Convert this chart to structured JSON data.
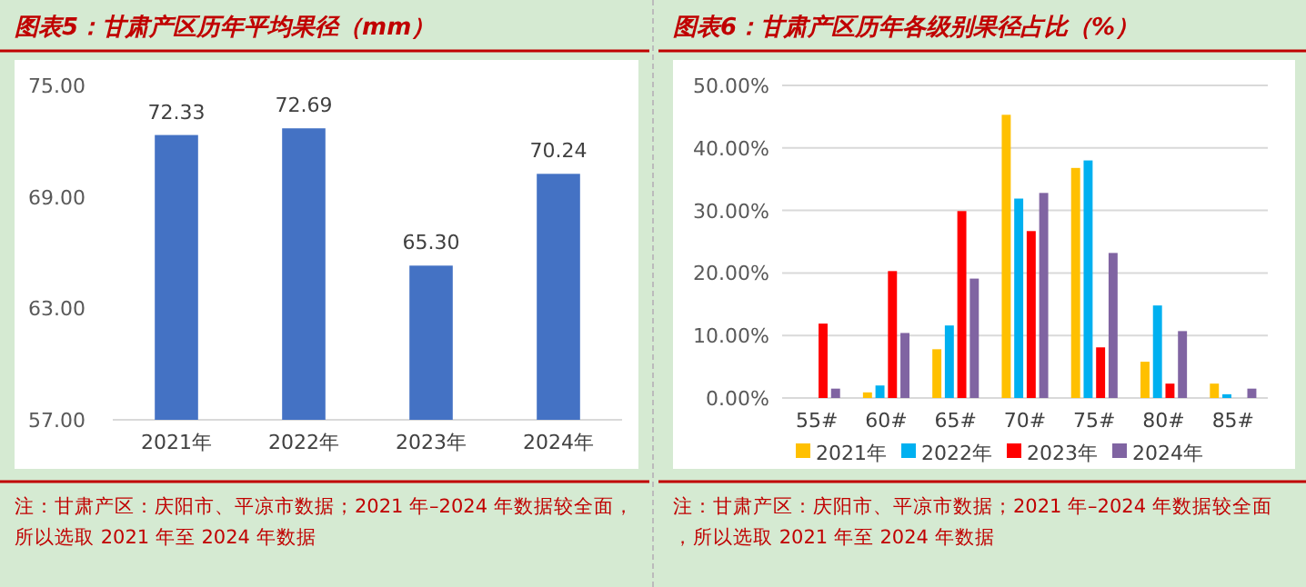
{
  "chart_data": [
    {
      "type": "bar",
      "title": "图表5：甘肃产区历年平均果径（mm）",
      "categories": [
        "2021年",
        "2022年",
        "2023年",
        "2024年"
      ],
      "series": [
        {
          "color": "#4472c4",
          "values": [
            72.33,
            72.69,
            65.3,
            70.24
          ],
          "value_labels": [
            "72.33",
            "72.69",
            "65.30",
            "70.24"
          ]
        }
      ],
      "ylim": [
        57,
        75
      ],
      "yticks": [
        {
          "value": 57,
          "label": "57.00"
        },
        {
          "value": 63,
          "label": "63.00"
        },
        {
          "value": 69,
          "label": "69.00"
        },
        {
          "value": 75,
          "label": "75.00"
        }
      ],
      "grid": false,
      "legend": false,
      "annotations": [
        "注：甘肃产区：庆阳市、平凉市数据；2021 年–2024 年数据较全面，所以选取 2021 年至 2024 年数据"
      ]
    },
    {
      "type": "bar",
      "title": "图表6：甘肃产区历年各级别果径占比（%）",
      "categories": [
        "55#",
        "60#",
        "65#",
        "70#",
        "75#",
        "80#",
        "85#"
      ],
      "series": [
        {
          "name": "2021年",
          "color": "#ffc000",
          "values": [
            0,
            0.9,
            7.8,
            45.3,
            36.8,
            5.8,
            2.3
          ]
        },
        {
          "name": "2022年",
          "color": "#00b0f0",
          "values": [
            0,
            2.0,
            11.6,
            31.9,
            38.0,
            14.8,
            0.6
          ]
        },
        {
          "name": "2023年",
          "color": "#ff0000",
          "values": [
            11.9,
            20.3,
            29.9,
            26.7,
            8.1,
            2.3,
            0
          ]
        },
        {
          "name": "2024年",
          "color": "#8064a2",
          "values": [
            1.5,
            10.4,
            19.1,
            32.8,
            23.2,
            10.7,
            1.5
          ]
        }
      ],
      "ylim": [
        0,
        50
      ],
      "yticks": [
        {
          "value": 0,
          "label": "0.00%"
        },
        {
          "value": 10,
          "label": "10.00%"
        },
        {
          "value": 20,
          "label": "20.00%"
        },
        {
          "value": 30,
          "label": "30.00%"
        },
        {
          "value": 40,
          "label": "40.00%"
        },
        {
          "value": 50,
          "label": "50.00%"
        }
      ],
      "grid": "y",
      "legend": "bottom",
      "annotations": [
        "注：甘肃产区：庆阳市、平凉市数据；2021 年–2024 年数据较全面，所以选取 2021 年至 2024 年数据"
      ]
    }
  ]
}
